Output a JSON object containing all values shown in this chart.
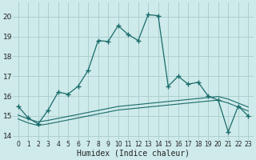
{
  "xlabel": "Humidex (Indice chaleur)",
  "bg_color": "#ceeaea",
  "grid_color": "#aacccc",
  "line_color": "#1a6b6b",
  "xlim": [
    -0.5,
    23.5
  ],
  "ylim": [
    13.8,
    20.7
  ],
  "yticks": [
    14,
    15,
    16,
    17,
    18,
    19,
    20
  ],
  "xticks": [
    0,
    1,
    2,
    3,
    4,
    5,
    6,
    7,
    8,
    9,
    10,
    11,
    12,
    13,
    14,
    15,
    16,
    17,
    18,
    19,
    20,
    21,
    22,
    23
  ],
  "line1_x": [
    0,
    1,
    2,
    3,
    4,
    5,
    6,
    7,
    8,
    9,
    10,
    11,
    12,
    13,
    14,
    15,
    16,
    17,
    18,
    19,
    20,
    21,
    22,
    23
  ],
  "line1_y": [
    15.5,
    14.9,
    14.6,
    15.3,
    16.2,
    16.1,
    16.5,
    17.3,
    18.8,
    18.75,
    19.55,
    19.1,
    18.8,
    20.1,
    20.05,
    16.5,
    17.0,
    16.6,
    16.7,
    16.0,
    15.8,
    14.2,
    15.5,
    15.0
  ],
  "line2_x": [
    0,
    1,
    2,
    3,
    4,
    5,
    6,
    7,
    8,
    9,
    10,
    11,
    12,
    13,
    14,
    15,
    16,
    17,
    18,
    19,
    20,
    21,
    22,
    23
  ],
  "line2_y": [
    15.05,
    14.85,
    14.7,
    14.78,
    14.88,
    14.98,
    15.08,
    15.18,
    15.28,
    15.38,
    15.48,
    15.53,
    15.58,
    15.63,
    15.68,
    15.73,
    15.78,
    15.83,
    15.88,
    15.93,
    15.98,
    15.85,
    15.65,
    15.45
  ],
  "line3_x": [
    0,
    1,
    2,
    3,
    4,
    5,
    6,
    7,
    8,
    9,
    10,
    11,
    12,
    13,
    14,
    15,
    16,
    17,
    18,
    19,
    20,
    21,
    22,
    23
  ],
  "line3_y": [
    14.85,
    14.65,
    14.52,
    14.6,
    14.7,
    14.8,
    14.9,
    15.0,
    15.1,
    15.2,
    15.3,
    15.35,
    15.4,
    15.45,
    15.5,
    15.55,
    15.6,
    15.65,
    15.7,
    15.75,
    15.8,
    15.65,
    15.45,
    15.25
  ]
}
